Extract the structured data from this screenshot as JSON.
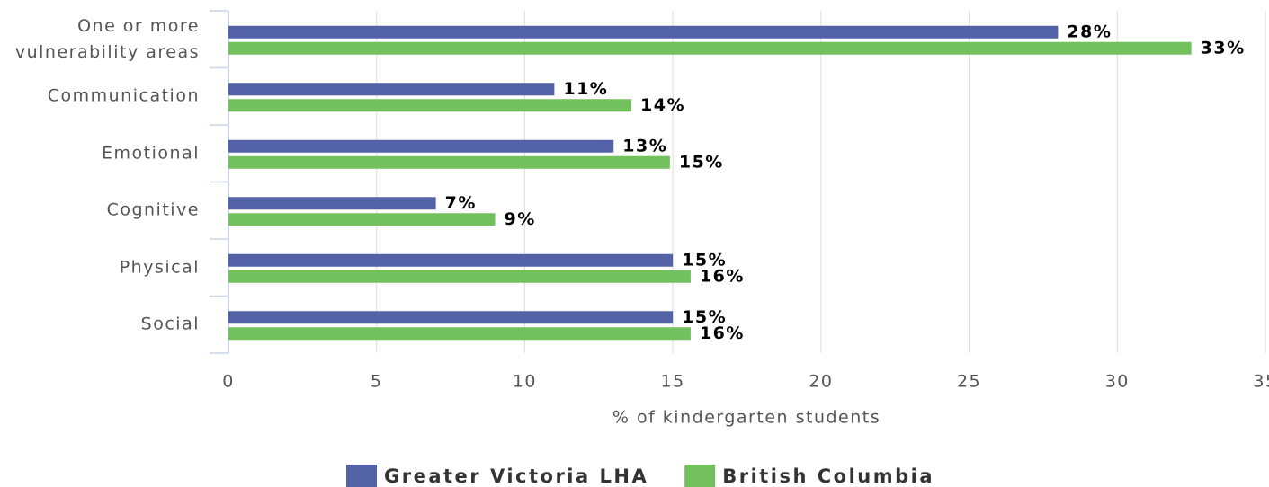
{
  "chart_data": {
    "type": "hbar",
    "x_label": "% of kindergarten students",
    "categories": [
      "One or more vulnerability areas",
      "Communication",
      "Emotional",
      "Cognitive",
      "Physical",
      "Social"
    ],
    "series": [
      {
        "name": "Greater Victoria LHA",
        "color": "#5361a6",
        "values": [
          28,
          11,
          13,
          7,
          15,
          15
        ],
        "value_labels": [
          "28%",
          "11%",
          "13%",
          "7%",
          "15%",
          "15%"
        ]
      },
      {
        "name": "British Columbia",
        "color": "#72c05e",
        "values": [
          32.5,
          13.6,
          14.9,
          9,
          15.6,
          15.6
        ],
        "value_labels": [
          "33%",
          "14%",
          "15%",
          "9%",
          "16%",
          "16%"
        ]
      }
    ],
    "xlim": [
      0,
      35
    ],
    "xticks": [
      0,
      5,
      10,
      15,
      20,
      25,
      30,
      35
    ],
    "grid": true,
    "legend": "bottom"
  }
}
